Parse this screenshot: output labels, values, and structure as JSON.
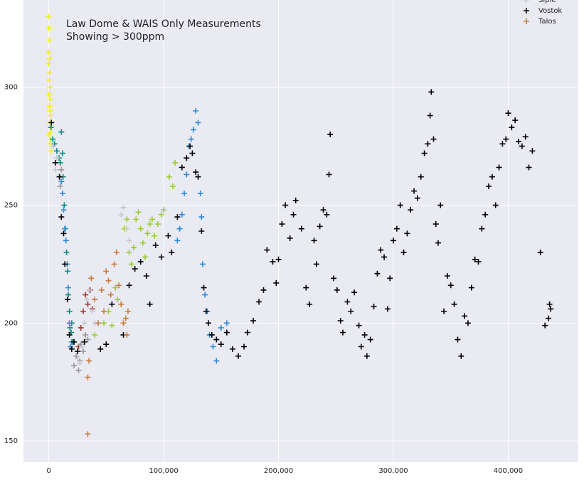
{
  "chart_data": {
    "type": "scatter",
    "annotation": [
      "Law Dome & WAIS Only Measurements",
      "Showing > 300ppm"
    ],
    "xlim": [
      -22000,
      461000
    ],
    "ylim": [
      141,
      337
    ],
    "xticks": [
      0,
      {
        "value": 100000,
        "label": "100,000"
      },
      {
        "value": 200000,
        "label": "200,000"
      },
      {
        "value": 300000,
        "label": "300,000"
      },
      {
        "value": 400000,
        "label": "400,000"
      }
    ],
    "yticks": [
      150,
      200,
      250,
      300
    ],
    "grid": true,
    "legend": "upper right",
    "series": [
      {
        "color": "#f2f21a",
        "x": [
          0,
          200,
          500,
          300,
          700,
          100,
          600,
          400,
          800,
          200,
          1000,
          500,
          900,
          1200,
          700,
          1500,
          300,
          1800,
          1000,
          2000,
          1400
        ],
        "values": [
          330,
          325,
          320,
          315,
          312,
          310,
          306,
          303,
          300,
          297,
          295,
          292,
          290,
          288,
          285,
          283,
          280,
          278,
          276,
          273,
          281
        ]
      },
      {
        "color": "#0a8a80",
        "x": [
          2000,
          3500,
          5000,
          7000,
          9000,
          11000,
          12000,
          12500,
          13500,
          14500,
          15500,
          16500,
          17000,
          18000,
          18500,
          19500,
          20000,
          21000,
          10000
        ],
        "values": [
          283,
          278,
          276,
          273,
          270,
          281,
          272,
          262,
          250,
          240,
          230,
          222,
          212,
          205,
          198,
          196,
          200,
          192,
          268
        ]
      },
      {
        "color": "#2e8bd8",
        "x": [
          11000,
          12000,
          13000,
          14000,
          15000,
          16000,
          17000,
          18000,
          19000,
          20000,
          112000,
          114000,
          116000,
          118000,
          120000,
          122000,
          124000,
          126000,
          128000,
          130000,
          132000,
          133000,
          134000,
          136000,
          138000,
          140000,
          143000,
          146000,
          150000,
          155000
        ],
        "values": [
          260,
          255,
          248,
          240,
          235,
          225,
          215,
          200,
          190,
          192,
          235,
          240,
          246,
          255,
          263,
          275,
          278,
          282,
          290,
          285,
          255,
          245,
          225,
          212,
          205,
          195,
          190,
          184,
          198,
          200
        ]
      },
      {
        "color": "#9acd32",
        "x": [
          40000,
          45000,
          48000,
          52000,
          55000,
          58000,
          60000,
          63000,
          66000,
          68000,
          70000,
          72000,
          74000,
          76000,
          78000,
          80000,
          82000,
          84000,
          86000,
          88000,
          90000,
          92000,
          95000,
          98000,
          100000,
          105000,
          108000,
          110000
        ],
        "values": [
          195,
          189,
          200,
          205,
          199,
          215,
          210,
          208,
          240,
          244,
          230,
          225,
          232,
          244,
          247,
          240,
          234,
          228,
          238,
          242,
          244,
          237,
          242,
          246,
          248,
          262,
          258,
          268
        ]
      },
      {
        "color": "#a0392e",
        "x": [
          26000,
          28000,
          30000,
          32000,
          34000,
          36000,
          38000
        ],
        "values": [
          190,
          198,
          205,
          212,
          208,
          214,
          206
        ]
      },
      {
        "color": "#999999",
        "x": [
          9000,
          10000,
          11000,
          22000,
          24000,
          26000,
          27000,
          28000,
          30000,
          32000,
          34000
        ],
        "values": [
          262,
          258,
          265,
          182,
          186,
          180,
          184,
          191,
          188,
          195,
          193
        ]
      },
      {
        "name": "Siple",
        "color": "#c8c8d0",
        "x": [
          4000,
          6000,
          7000,
          25000,
          27000,
          29000,
          31000,
          33000,
          35000,
          38000,
          40000,
          63000,
          65000,
          68000,
          70000
        ],
        "values": [
          275,
          265,
          270,
          185,
          183,
          190,
          200,
          210,
          214,
          205,
          200,
          246,
          249,
          240,
          235
        ]
      },
      {
        "name": "Vostok",
        "color": "#000000",
        "x": [
          2300,
          5700,
          9500,
          11000,
          13000,
          14000,
          16500,
          18000,
          20000,
          22000,
          25000,
          31000,
          45000,
          50000,
          55000,
          65000,
          70000,
          75000,
          80000,
          85000,
          88000,
          93000,
          98000,
          104000,
          107000,
          112000,
          116000,
          120000,
          123000,
          125000,
          128000,
          130000,
          133000,
          135000,
          137000,
          139000,
          142000,
          146000,
          150000,
          155000,
          160000,
          165000,
          170000,
          173000,
          178000,
          183000,
          187000,
          190000,
          195000,
          198000,
          200000,
          203000,
          206000,
          210000,
          213000,
          215000,
          220000,
          224000,
          227000,
          231000,
          233000,
          236000,
          239000,
          242000,
          244000,
          245000,
          248000,
          251000,
          254000,
          256000,
          260000,
          263000,
          266000,
          270000,
          272000,
          275000,
          277000,
          280000,
          283000,
          286000,
          289000,
          292000,
          295000,
          297000,
          300000,
          303000,
          306000,
          309000,
          312000,
          315000,
          318000,
          321000,
          324000,
          327000,
          330000,
          332000,
          333000,
          335000,
          337000,
          339000,
          341000,
          344000,
          347000,
          350000,
          353000,
          356000,
          359000,
          362000,
          365000,
          368000,
          371000,
          374000,
          377000,
          380000,
          383000,
          386000,
          389000,
          392000,
          395000,
          398000,
          400000,
          403000,
          406000,
          409000,
          412000,
          415000,
          418000,
          421000,
          428000,
          432000,
          435000,
          436000,
          437000
        ],
        "values": [
          285,
          268,
          262,
          245,
          238,
          225,
          210,
          195,
          189,
          192,
          188,
          192,
          189,
          191,
          208,
          195,
          216,
          223,
          226,
          220,
          208,
          233,
          228,
          237,
          230,
          245,
          266,
          270,
          275,
          272,
          264,
          262,
          239,
          215,
          205,
          200,
          195,
          193,
          191,
          196,
          189,
          186,
          190,
          196,
          201,
          209,
          214,
          231,
          226,
          217,
          227,
          242,
          250,
          236,
          246,
          252,
          240,
          215,
          208,
          235,
          225,
          241,
          248,
          246,
          263,
          280,
          219,
          214,
          201,
          196,
          209,
          205,
          213,
          199,
          190,
          195,
          186,
          193,
          207,
          221,
          231,
          228,
          206,
          219,
          235,
          240,
          250,
          230,
          238,
          248,
          256,
          253,
          262,
          272,
          276,
          288,
          298,
          278,
          242,
          234,
          250,
          205,
          220,
          216,
          208,
          193,
          186,
          203,
          200,
          215,
          227,
          226,
          240,
          246,
          258,
          262,
          250,
          266,
          276,
          278,
          289,
          283,
          286,
          277,
          275,
          279,
          266,
          273,
          230,
          199,
          202,
          208,
          206
        ]
      },
      {
        "name": "Talos",
        "color": "#c97d3f",
        "x": [
          34000,
          34000,
          35000,
          37000,
          40000,
          43000,
          46000,
          48000,
          50000,
          52000,
          54000,
          57000,
          59000,
          61000,
          63000,
          65000,
          67000,
          68000,
          69000
        ],
        "values": [
          177,
          153,
          184,
          219,
          210,
          200,
          214,
          205,
          222,
          218,
          212,
          225,
          230,
          216,
          208,
          200,
          202,
          195,
          205
        ]
      }
    ]
  }
}
